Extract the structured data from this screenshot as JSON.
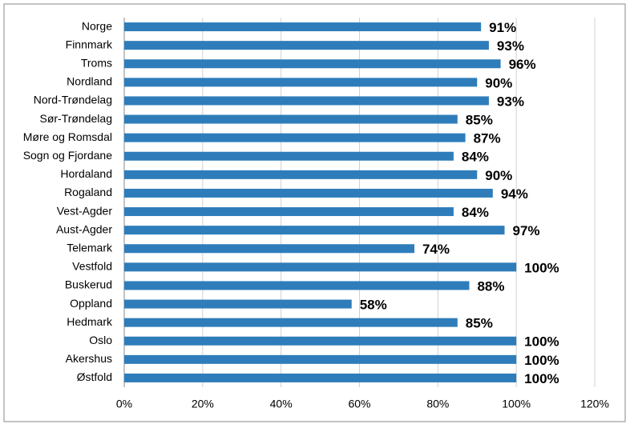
{
  "chart_data": {
    "type": "bar",
    "orientation": "horizontal",
    "categories": [
      "Norge",
      "Finnmark",
      "Troms",
      "Nordland",
      "Nord-Trøndelag",
      "Sør-Trøndelag",
      "Møre og Romsdal",
      "Sogn og Fjordane",
      "Hordaland",
      "Rogaland",
      "Vest-Agder",
      "Aust-Agder",
      "Telemark",
      "Vestfold",
      "Buskerud",
      "Oppland",
      "Hedmark",
      "Oslo",
      "Akershus",
      "Østfold"
    ],
    "values": [
      91,
      93,
      96,
      90,
      93,
      85,
      87,
      84,
      90,
      94,
      84,
      97,
      74,
      100,
      88,
      58,
      85,
      100,
      100,
      100
    ],
    "value_labels": [
      "91%",
      "93%",
      "96%",
      "90%",
      "93%",
      "85%",
      "87%",
      "84%",
      "90%",
      "94%",
      "84%",
      "97%",
      "74%",
      "100%",
      "88%",
      "58%",
      "85%",
      "100%",
      "100%",
      "100%"
    ],
    "color": "#2e7dba",
    "xlim": [
      0,
      120
    ],
    "xticks": [
      {
        "value": 0,
        "label": "0%"
      },
      {
        "value": 20,
        "label": "20%"
      },
      {
        "value": 40,
        "label": "40%"
      },
      {
        "value": 60,
        "label": "60%"
      },
      {
        "value": 80,
        "label": "80%"
      },
      {
        "value": 100,
        "label": "100%"
      },
      {
        "value": 120,
        "label": "120%"
      }
    ],
    "grid": true
  }
}
